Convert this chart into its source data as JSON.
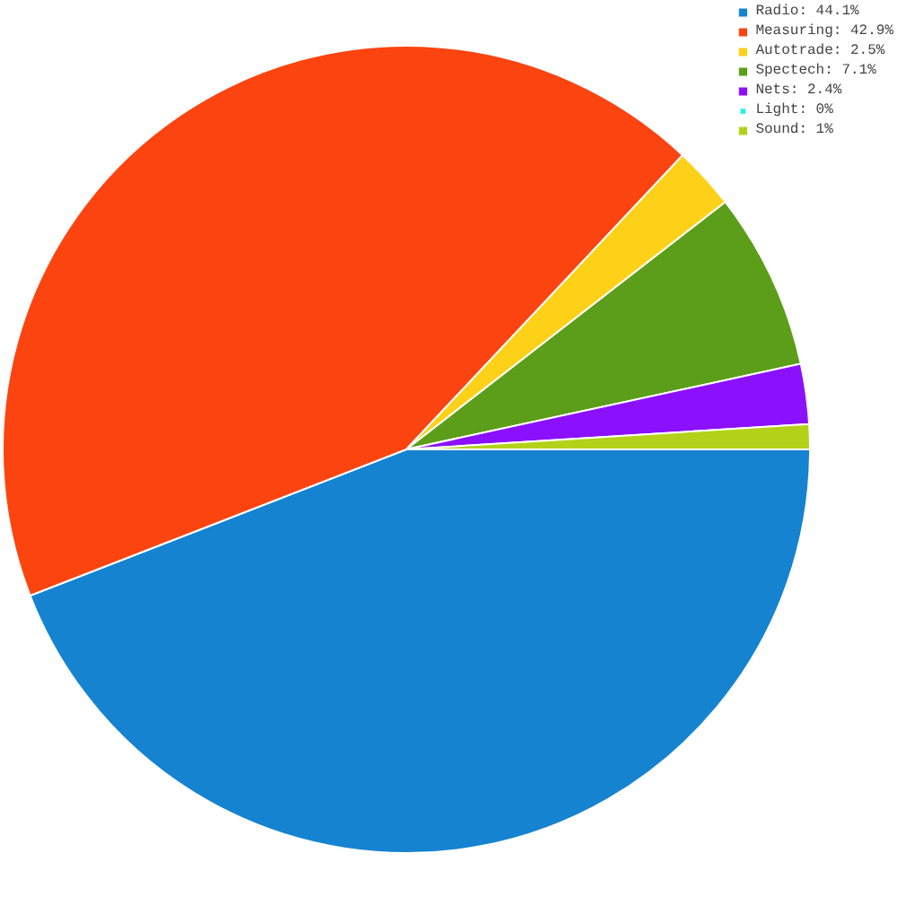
{
  "chart_data": {
    "type": "pie",
    "categories": [
      "Radio",
      "Measuring",
      "Autotrade",
      "Spectech",
      "Nets",
      "Light",
      "Sound"
    ],
    "values": [
      44.1,
      42.9,
      2.5,
      7.1,
      2.4,
      0,
      1
    ],
    "value_labels": [
      "44.1%",
      "42.9%",
      "2.5%",
      "7.1%",
      "2.4%",
      "0%",
      "1%"
    ],
    "colors": [
      "#1583d0",
      "#fc4411",
      "#fdd117",
      "#5c9e19",
      "#8b11fc",
      "#18f0f0",
      "#b4d11a"
    ],
    "legend": "top right"
  }
}
